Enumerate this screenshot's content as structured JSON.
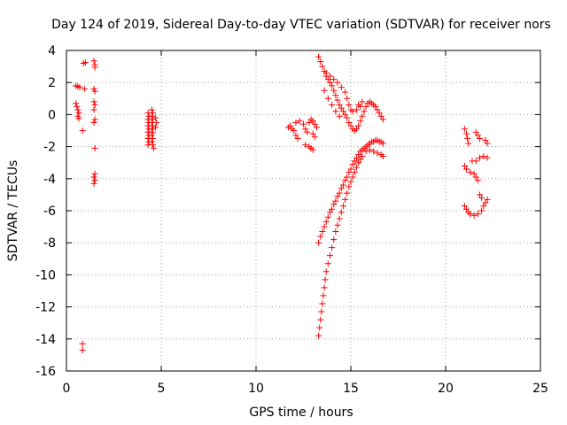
{
  "chart_data": {
    "type": "scatter",
    "title": "Day 124 of 2019, Sidereal Day-to-day VTEC variation (SDTVAR) for receiver nors",
    "xlabel": "GPS time / hours",
    "ylabel": "SDTVAR / TECUs",
    "xlim": [
      0,
      25
    ],
    "ylim": [
      -16,
      4
    ],
    "xticks": [
      0,
      5,
      10,
      15,
      20,
      25
    ],
    "yticks": [
      -16,
      -14,
      -12,
      -10,
      -8,
      -6,
      -4,
      -2,
      0,
      2,
      4
    ],
    "grid": true,
    "marker": "plus",
    "color": "#ff0000",
    "series": [
      {
        "points": [
          [
            0.5,
            1.8
          ],
          [
            0.6,
            1.75
          ],
          [
            0.7,
            1.7
          ],
          [
            0.5,
            0.7
          ],
          [
            0.55,
            0.5
          ],
          [
            0.6,
            0.3
          ],
          [
            0.65,
            0.1
          ],
          [
            0.6,
            -0.1
          ],
          [
            0.65,
            -0.25
          ],
          [
            0.9,
            3.2
          ],
          [
            1.0,
            3.25
          ],
          [
            0.95,
            1.6
          ],
          [
            0.85,
            -1.0
          ],
          [
            0.85,
            -14.3
          ],
          [
            0.85,
            -14.7
          ],
          [
            1.45,
            3.35
          ],
          [
            1.5,
            3.1
          ],
          [
            1.5,
            2.95
          ],
          [
            1.45,
            1.6
          ],
          [
            1.5,
            1.45
          ],
          [
            1.45,
            0.8
          ],
          [
            1.5,
            0.6
          ],
          [
            1.45,
            0.3
          ],
          [
            1.5,
            -0.3
          ],
          [
            1.45,
            -0.5
          ],
          [
            1.5,
            -2.1
          ],
          [
            1.5,
            -3.7
          ],
          [
            1.45,
            -3.9
          ],
          [
            1.5,
            -4.1
          ],
          [
            1.45,
            -4.3
          ],
          [
            4.3,
            0.1
          ],
          [
            4.35,
            -0.1
          ],
          [
            4.3,
            -0.3
          ],
          [
            4.35,
            -0.5
          ],
          [
            4.3,
            -0.7
          ],
          [
            4.35,
            -0.9
          ],
          [
            4.3,
            -1.1
          ],
          [
            4.35,
            -1.3
          ],
          [
            4.3,
            -1.5
          ],
          [
            4.35,
            -1.7
          ],
          [
            4.3,
            -1.9
          ],
          [
            4.5,
            0.3
          ],
          [
            4.55,
            0.1
          ],
          [
            4.5,
            -0.1
          ],
          [
            4.55,
            -0.3
          ],
          [
            4.5,
            -0.5
          ],
          [
            4.55,
            -0.7
          ],
          [
            4.5,
            -0.9
          ],
          [
            4.55,
            -1.1
          ],
          [
            4.5,
            -1.3
          ],
          [
            4.55,
            -1.5
          ],
          [
            4.5,
            -1.7
          ],
          [
            4.55,
            -1.9
          ],
          [
            4.6,
            -2.1
          ],
          [
            4.7,
            -0.2
          ],
          [
            4.75,
            -0.5
          ],
          [
            4.7,
            -0.8
          ],
          [
            11.7,
            -0.8
          ],
          [
            11.8,
            -0.7
          ],
          [
            11.9,
            -0.9
          ],
          [
            12.0,
            -1.0
          ],
          [
            12.1,
            -1.3
          ],
          [
            12.2,
            -1.5
          ],
          [
            12.1,
            -0.5
          ],
          [
            12.3,
            -0.4
          ],
          [
            12.5,
            -0.6
          ],
          [
            12.6,
            -0.9
          ],
          [
            12.7,
            -1.1
          ],
          [
            12.6,
            -1.9
          ],
          [
            12.8,
            -2.0
          ],
          [
            12.9,
            -2.1
          ],
          [
            13.0,
            -2.2
          ],
          [
            12.8,
            -0.5
          ],
          [
            12.9,
            -0.3
          ],
          [
            13.0,
            -0.4
          ],
          [
            13.1,
            -0.6
          ],
          [
            13.2,
            -0.8
          ],
          [
            13.0,
            -1.2
          ],
          [
            13.1,
            -1.4
          ],
          [
            13.3,
            3.6
          ],
          [
            13.4,
            3.3
          ],
          [
            13.5,
            3.0
          ],
          [
            13.6,
            2.7
          ],
          [
            13.7,
            2.4
          ],
          [
            13.8,
            2.2
          ],
          [
            13.9,
            2.0
          ],
          [
            14.0,
            1.8
          ],
          [
            14.1,
            1.5
          ],
          [
            14.2,
            1.2
          ],
          [
            14.3,
            0.9
          ],
          [
            14.4,
            0.6
          ],
          [
            14.5,
            0.4
          ],
          [
            14.6,
            0.2
          ],
          [
            14.7,
            0.0
          ],
          [
            14.8,
            -0.2
          ],
          [
            14.9,
            -0.5
          ],
          [
            15.0,
            -0.7
          ],
          [
            15.1,
            -0.9
          ],
          [
            15.2,
            -1.0
          ],
          [
            15.3,
            -0.9
          ],
          [
            15.4,
            -0.7
          ],
          [
            15.5,
            -0.4
          ],
          [
            15.6,
            -0.1
          ],
          [
            15.7,
            0.2
          ],
          [
            15.8,
            0.5
          ],
          [
            15.9,
            0.7
          ],
          [
            16.0,
            0.8
          ],
          [
            16.1,
            0.7
          ],
          [
            16.2,
            0.6
          ],
          [
            16.3,
            0.5
          ],
          [
            16.4,
            0.3
          ],
          [
            16.5,
            0.1
          ],
          [
            16.6,
            -0.1
          ],
          [
            16.7,
            -0.3
          ],
          [
            13.7,
            2.6
          ],
          [
            13.9,
            2.4
          ],
          [
            14.1,
            2.2
          ],
          [
            14.3,
            2.0
          ],
          [
            14.5,
            1.7
          ],
          [
            14.7,
            1.4
          ],
          [
            14.8,
            1.0
          ],
          [
            14.9,
            0.6
          ],
          [
            15.0,
            0.3
          ],
          [
            15.1,
            0.2
          ],
          [
            15.3,
            0.3
          ],
          [
            15.5,
            0.5
          ],
          [
            15.6,
            0.8
          ],
          [
            15.4,
            0.6
          ],
          [
            13.6,
            1.5
          ],
          [
            13.8,
            1.0
          ],
          [
            14.0,
            0.6
          ],
          [
            14.2,
            0.2
          ],
          [
            14.4,
            -0.1
          ],
          [
            13.3,
            -8.0
          ],
          [
            13.4,
            -7.6
          ],
          [
            13.5,
            -7.3
          ],
          [
            13.6,
            -7.0
          ],
          [
            13.7,
            -6.7
          ],
          [
            13.8,
            -6.4
          ],
          [
            13.9,
            -6.1
          ],
          [
            14.0,
            -5.9
          ],
          [
            14.1,
            -5.6
          ],
          [
            14.2,
            -5.4
          ],
          [
            14.3,
            -5.1
          ],
          [
            14.4,
            -4.9
          ],
          [
            14.5,
            -4.6
          ],
          [
            14.6,
            -4.4
          ],
          [
            14.7,
            -4.1
          ],
          [
            14.8,
            -3.9
          ],
          [
            14.9,
            -3.6
          ],
          [
            15.0,
            -3.4
          ],
          [
            15.1,
            -3.1
          ],
          [
            15.2,
            -2.9
          ],
          [
            15.3,
            -2.7
          ],
          [
            15.4,
            -2.5
          ],
          [
            15.5,
            -2.3
          ],
          [
            15.6,
            -2.2
          ],
          [
            15.7,
            -2.1
          ],
          [
            15.8,
            -2.0
          ],
          [
            15.9,
            -1.9
          ],
          [
            16.0,
            -1.8
          ],
          [
            16.1,
            -1.7
          ],
          [
            16.2,
            -1.7
          ],
          [
            16.3,
            -1.6
          ],
          [
            16.4,
            -1.6
          ],
          [
            16.5,
            -1.7
          ],
          [
            16.6,
            -1.7
          ],
          [
            16.7,
            -1.8
          ],
          [
            13.3,
            -13.8
          ],
          [
            13.35,
            -13.3
          ],
          [
            13.4,
            -12.8
          ],
          [
            13.45,
            -12.3
          ],
          [
            13.5,
            -11.8
          ],
          [
            13.55,
            -11.3
          ],
          [
            13.6,
            -10.8
          ],
          [
            13.65,
            -10.3
          ],
          [
            13.7,
            -9.8
          ],
          [
            13.8,
            -9.3
          ],
          [
            13.9,
            -8.8
          ],
          [
            14.0,
            -8.3
          ],
          [
            14.1,
            -7.8
          ],
          [
            14.2,
            -7.3
          ],
          [
            14.3,
            -6.9
          ],
          [
            14.4,
            -6.5
          ],
          [
            14.5,
            -6.1
          ],
          [
            14.6,
            -5.7
          ],
          [
            14.7,
            -5.3
          ],
          [
            14.8,
            -4.9
          ],
          [
            14.9,
            -4.5
          ],
          [
            15.0,
            -4.2
          ],
          [
            15.1,
            -3.9
          ],
          [
            15.2,
            -3.6
          ],
          [
            15.3,
            -3.3
          ],
          [
            15.4,
            -3.0
          ],
          [
            15.5,
            -2.8
          ],
          [
            15.6,
            -2.6
          ],
          [
            15.8,
            -2.3
          ],
          [
            16.0,
            -2.2
          ],
          [
            16.2,
            -2.3
          ],
          [
            16.4,
            -2.4
          ],
          [
            16.6,
            -2.5
          ],
          [
            16.7,
            -2.6
          ],
          [
            21.0,
            -0.9
          ],
          [
            21.1,
            -1.2
          ],
          [
            21.15,
            -1.5
          ],
          [
            21.2,
            -1.8
          ],
          [
            21.6,
            -1.1
          ],
          [
            21.7,
            -1.3
          ],
          [
            21.8,
            -1.5
          ],
          [
            22.1,
            -1.6
          ],
          [
            22.2,
            -1.8
          ],
          [
            21.0,
            -3.2
          ],
          [
            21.1,
            -3.4
          ],
          [
            21.3,
            -3.6
          ],
          [
            21.5,
            -3.7
          ],
          [
            21.6,
            -3.9
          ],
          [
            21.7,
            -4.1
          ],
          [
            21.6,
            -2.9
          ],
          [
            21.8,
            -2.7
          ],
          [
            22.0,
            -2.6
          ],
          [
            22.2,
            -2.7
          ],
          [
            21.4,
            -2.9
          ],
          [
            21.0,
            -5.7
          ],
          [
            21.1,
            -5.9
          ],
          [
            21.2,
            -6.1
          ],
          [
            21.3,
            -6.2
          ],
          [
            21.5,
            -6.3
          ],
          [
            21.7,
            -6.2
          ],
          [
            21.9,
            -6.0
          ],
          [
            22.0,
            -5.7
          ],
          [
            22.1,
            -5.5
          ],
          [
            22.2,
            -5.3
          ],
          [
            21.8,
            -5.0
          ],
          [
            21.9,
            -5.2
          ]
        ]
      }
    ]
  }
}
